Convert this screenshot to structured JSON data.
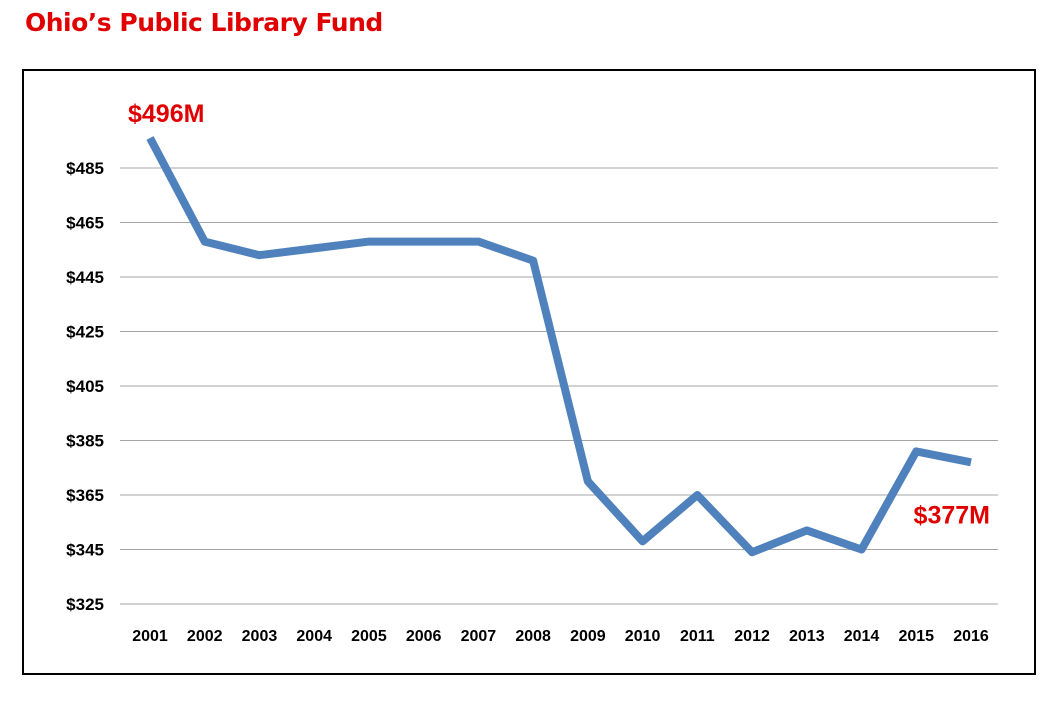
{
  "title": "Ohio’s Public Library Fund",
  "colors": {
    "title": "#e00000",
    "annotation": "#e00000",
    "line": "#4f81bd",
    "grid": "#a6a6a6",
    "text": "#000000"
  },
  "chart_data": {
    "type": "line",
    "title": "",
    "xlabel": "",
    "ylabel": "",
    "categories": [
      "2001",
      "2002",
      "2003",
      "2004",
      "2005",
      "2006",
      "2007",
      "2008",
      "2009",
      "2010",
      "2011",
      "2012",
      "2013",
      "2014",
      "2015",
      "2016"
    ],
    "series": [
      {
        "values": [
          496,
          458,
          453,
          455.5,
          458,
          458,
          458,
          451,
          370,
          348,
          365,
          344,
          352,
          345,
          381,
          377
        ]
      }
    ],
    "ylim": [
      325,
      485
    ],
    "yticks": [
      325,
      345,
      365,
      385,
      405,
      425,
      445,
      465,
      485
    ],
    "ytick_labels": [
      "$325",
      "$345",
      "$365",
      "$385",
      "$405",
      "$425",
      "$445",
      "$465",
      "$485"
    ],
    "grid": true,
    "legend": "none",
    "annotations": [
      {
        "text": "$496M",
        "category": "2001",
        "value": 496,
        "placement": "above"
      },
      {
        "text": "$377M",
        "category": "2016",
        "value": 377,
        "placement": "below-left"
      }
    ]
  }
}
